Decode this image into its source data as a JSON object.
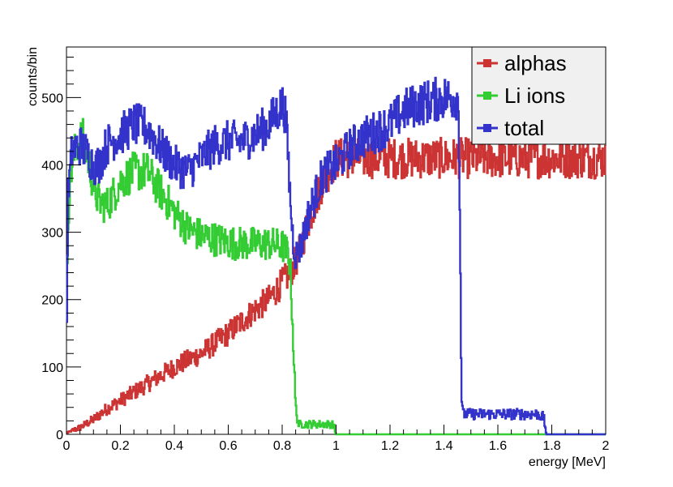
{
  "chart_data": {
    "type": "line",
    "xlabel": "energy [MeV]",
    "ylabel": "counts/bin",
    "xlim": [
      0,
      2
    ],
    "ylim": [
      0,
      575
    ],
    "x_ticks": [
      "0",
      "0.2",
      "0.4",
      "0.6",
      "0.8",
      "1",
      "1.2",
      "1.4",
      "1.6",
      "1.8",
      "2"
    ],
    "y_ticks": [
      "0",
      "100",
      "200",
      "300",
      "400",
      "500"
    ],
    "legend_position": "top-right",
    "grid": false,
    "series": [
      {
        "name": "alphas",
        "color": "#cc3333",
        "x": [
          0,
          0.05,
          0.1,
          0.15,
          0.2,
          0.3,
          0.4,
          0.5,
          0.6,
          0.7,
          0.75,
          0.8,
          0.83,
          0.86,
          0.9,
          0.95,
          1.0
        ],
        "y": [
          2,
          10,
          22,
          38,
          50,
          75,
          100,
          120,
          150,
          185,
          200,
          225,
          240,
          265,
          320,
          375,
          410
        ]
      },
      {
        "name": "Li ions",
        "color": "#33cc33",
        "x": [
          0,
          0.005,
          0.02,
          0.04,
          0.06,
          0.08,
          0.1,
          0.12,
          0.15,
          0.18,
          0.2,
          0.25,
          0.3,
          0.35,
          0.4,
          0.45,
          0.5,
          0.55,
          0.6,
          0.65,
          0.7,
          0.75,
          0.8,
          0.82,
          0.83,
          0.84,
          0.85,
          0.86,
          0.9,
          0.95,
          0.99,
          1.0,
          1.1,
          1.3,
          1.5,
          1.7,
          2.0
        ],
        "y": [
          100,
          320,
          400,
          430,
          440,
          410,
          370,
          345,
          340,
          360,
          375,
          390,
          390,
          360,
          330,
          305,
          295,
          290,
          285,
          283,
          283,
          283,
          280,
          270,
          250,
          150,
          40,
          15,
          15,
          15,
          15,
          0,
          0,
          0,
          0,
          0,
          0
        ]
      },
      {
        "name": "total",
        "color": "#3333cc",
        "x": [
          0,
          0.005,
          0.02,
          0.05,
          0.08,
          0.1,
          0.12,
          0.15,
          0.2,
          0.25,
          0.3,
          0.35,
          0.4,
          0.45,
          0.5,
          0.55,
          0.6,
          0.65,
          0.7,
          0.75,
          0.8,
          0.81,
          0.82,
          0.83,
          0.84,
          0.85,
          0.87,
          0.9,
          0.95,
          1.0,
          1.05,
          1.1,
          1.15,
          1.2,
          1.25,
          1.3,
          1.35,
          1.4,
          1.45,
          1.455,
          1.46,
          1.465,
          1.47,
          1.5,
          1.6,
          1.7,
          1.75,
          1.77,
          1.78,
          1.8,
          2.0
        ],
        "y": [
          100,
          350,
          420,
          430,
          415,
          400,
          400,
          430,
          445,
          460,
          455,
          425,
          400,
          390,
          410,
          430,
          435,
          435,
          445,
          460,
          490,
          480,
          430,
          350,
          290,
          265,
          280,
          330,
          385,
          400,
          425,
          440,
          450,
          460,
          480,
          490,
          495,
          500,
          500,
          480,
          300,
          60,
          30,
          30,
          30,
          30,
          30,
          25,
          0,
          0,
          0
        ]
      }
    ]
  }
}
